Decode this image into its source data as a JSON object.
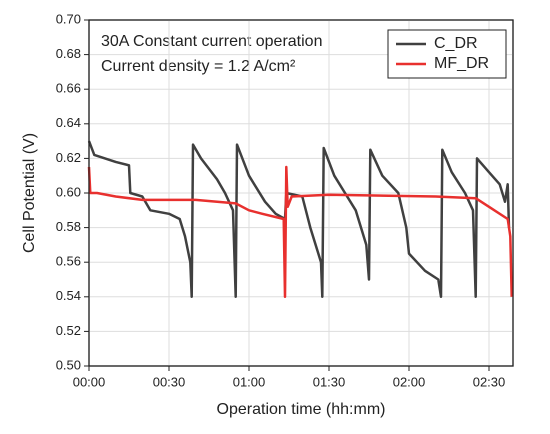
{
  "chart_data": {
    "type": "line",
    "annotations": [
      "30A Constant current operation",
      "Current density = 1.2 A/cm²"
    ],
    "xlabel": "Operation time (hh:mm)",
    "ylabel": "Cell Potential (V)",
    "xlim": [
      0,
      159
    ],
    "ylim": [
      0.5,
      0.7
    ],
    "xticks": [
      {
        "value": 0,
        "label": "00:00"
      },
      {
        "value": 30,
        "label": "00:30"
      },
      {
        "value": 60,
        "label": "01:00"
      },
      {
        "value": 90,
        "label": "01:30"
      },
      {
        "value": 120,
        "label": "02:00"
      },
      {
        "value": 150,
        "label": "02:30"
      }
    ],
    "yticks": [
      {
        "value": 0.5,
        "label": "0.50"
      },
      {
        "value": 0.52,
        "label": "0.52"
      },
      {
        "value": 0.54,
        "label": "0.54"
      },
      {
        "value": 0.56,
        "label": "0.56"
      },
      {
        "value": 0.58,
        "label": "0.58"
      },
      {
        "value": 0.6,
        "label": "0.60"
      },
      {
        "value": 0.62,
        "label": "0.62"
      },
      {
        "value": 0.64,
        "label": "0.64"
      },
      {
        "value": 0.66,
        "label": "0.66"
      },
      {
        "value": 0.68,
        "label": "0.68"
      },
      {
        "value": 0.7,
        "label": "0.70"
      }
    ],
    "grid": true,
    "legend": "upper right",
    "series": [
      {
        "name": "C_DR",
        "color": "#404040",
        "x": [
          0,
          2,
          10,
          15,
          15.5,
          20,
          23,
          30,
          34,
          36,
          38,
          38.5,
          39,
          42,
          48,
          51,
          54,
          55,
          55.5,
          60,
          66,
          70,
          73.5,
          74,
          80,
          83,
          87,
          87.5,
          88,
          92,
          96,
          100,
          104,
          105,
          105.5,
          110,
          116,
          119,
          120,
          126,
          131,
          132,
          132.5,
          136,
          141,
          144,
          145,
          145.5,
          150,
          154,
          156,
          157,
          157.5
        ],
        "values": [
          0.63,
          0.622,
          0.618,
          0.616,
          0.6,
          0.598,
          0.59,
          0.588,
          0.585,
          0.575,
          0.56,
          0.54,
          0.628,
          0.62,
          0.608,
          0.6,
          0.59,
          0.54,
          0.628,
          0.61,
          0.595,
          0.588,
          0.585,
          0.6,
          0.598,
          0.58,
          0.56,
          0.54,
          0.626,
          0.61,
          0.6,
          0.59,
          0.57,
          0.55,
          0.625,
          0.61,
          0.6,
          0.58,
          0.565,
          0.555,
          0.55,
          0.54,
          0.625,
          0.612,
          0.6,
          0.59,
          0.54,
          0.62,
          0.612,
          0.605,
          0.595,
          0.605,
          0.58
        ]
      },
      {
        "name": "MF_DR",
        "color": "#e8302e",
        "x": [
          0,
          0.5,
          3,
          10,
          20,
          40,
          55,
          60,
          65,
          73,
          73.5,
          74,
          74.5,
          76,
          90,
          130,
          145,
          150,
          157,
          158,
          158.5
        ],
        "values": [
          0.615,
          0.6,
          0.6,
          0.598,
          0.596,
          0.596,
          0.594,
          0.59,
          0.588,
          0.585,
          0.54,
          0.615,
          0.592,
          0.598,
          0.599,
          0.598,
          0.597,
          0.592,
          0.585,
          0.575,
          0.54
        ]
      }
    ]
  }
}
